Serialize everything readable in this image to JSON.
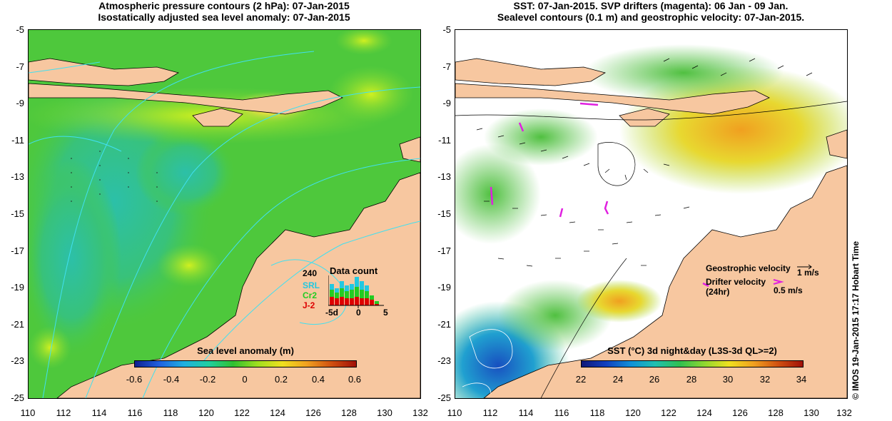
{
  "left_panel": {
    "title_line1": "Atmospheric pressure contours (2 hPa): 07-Jan-2015",
    "title_line2": "Isostatically adjusted sea level anomaly: 07-Jan-2015",
    "colorbar_title": "Sea level anomaly (m)",
    "colorbar_ticks": [
      "-0.6",
      "-0.4",
      "-0.2",
      "0",
      "0.2",
      "0.4",
      "0.6"
    ],
    "data_count": {
      "title": "Data count",
      "max_label": "240",
      "satellites": [
        {
          "name": "SRL",
          "color": "#22c8e0"
        },
        {
          "name": "Cr2",
          "color": "#22cc22"
        },
        {
          "name": "J-2",
          "color": "#dd0000"
        }
      ],
      "axis_labels": [
        "-5d",
        "0",
        "5"
      ]
    }
  },
  "right_panel": {
    "title_line1": "SST: 07-Jan-2015. SVP drifters (magenta): 06 Jan - 09 Jan.",
    "title_line2": "Sealevel contours (0.1 m) and geostrophic velocity: 07-Jan-2015.",
    "colorbar_title": "SST (°C) 3d night&day (L3S-3d QL>=2)",
    "colorbar_ticks": [
      "22",
      "24",
      "26",
      "28",
      "30",
      "32",
      "34"
    ],
    "legend": {
      "geostrophic_label": "Geostrophic velocity",
      "geostrophic_value": "1 m/s",
      "drifter_label_1": "Drifter velocity",
      "drifter_label_2": "(24hr)",
      "drifter_value": "0.5 m/s"
    }
  },
  "y_ticks": [
    "-5",
    "-7",
    "-9",
    "-11",
    "-13",
    "-15",
    "-17",
    "-19",
    "-21",
    "-23",
    "-25"
  ],
  "x_ticks": [
    "110",
    "112",
    "114",
    "116",
    "118",
    "120",
    "122",
    "124",
    "126",
    "128",
    "130",
    "132"
  ],
  "credit": "© IMOS 19-Jan-2015 17:17 Hobart Time",
  "colors": {
    "land": "#f7c7a0",
    "contour": "#40e0f0",
    "drifter": "#e020e0"
  }
}
